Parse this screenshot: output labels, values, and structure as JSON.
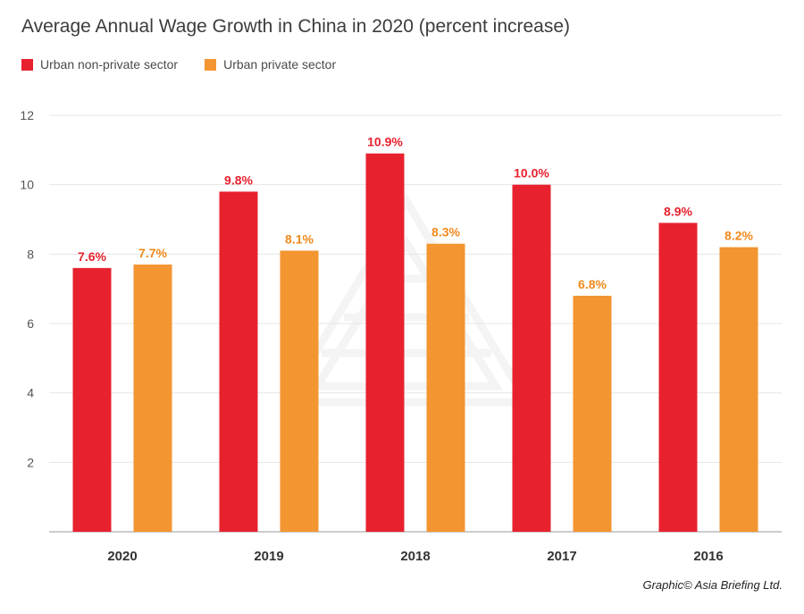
{
  "chart_data": {
    "type": "bar",
    "title": "Average Annual Wage Growth in China in 2020 (percent increase)",
    "categories": [
      "2020",
      "2019",
      "2018",
      "2017",
      "2016"
    ],
    "series": [
      {
        "name": "Urban non-private sector",
        "color": "#e8212e",
        "values": [
          7.6,
          9.8,
          10.9,
          10.0,
          8.9
        ],
        "labels": [
          "7.6%",
          "9.8%",
          "10.9%",
          "10.0%",
          "8.9%"
        ]
      },
      {
        "name": "Urban private sector",
        "color": "#f39530",
        "values": [
          7.7,
          8.1,
          8.3,
          6.8,
          8.2
        ],
        "labels": [
          "7.7%",
          "8.1%",
          "8.3%",
          "6.8%",
          "8.2%"
        ]
      }
    ],
    "yticks": [
      2,
      4,
      6,
      8,
      10,
      12
    ],
    "ylim": [
      0,
      12
    ],
    "grid": true,
    "legend_position": "top-left",
    "xlabel": "",
    "ylabel": ""
  },
  "credit": "Graphic© Asia Briefing Ltd."
}
